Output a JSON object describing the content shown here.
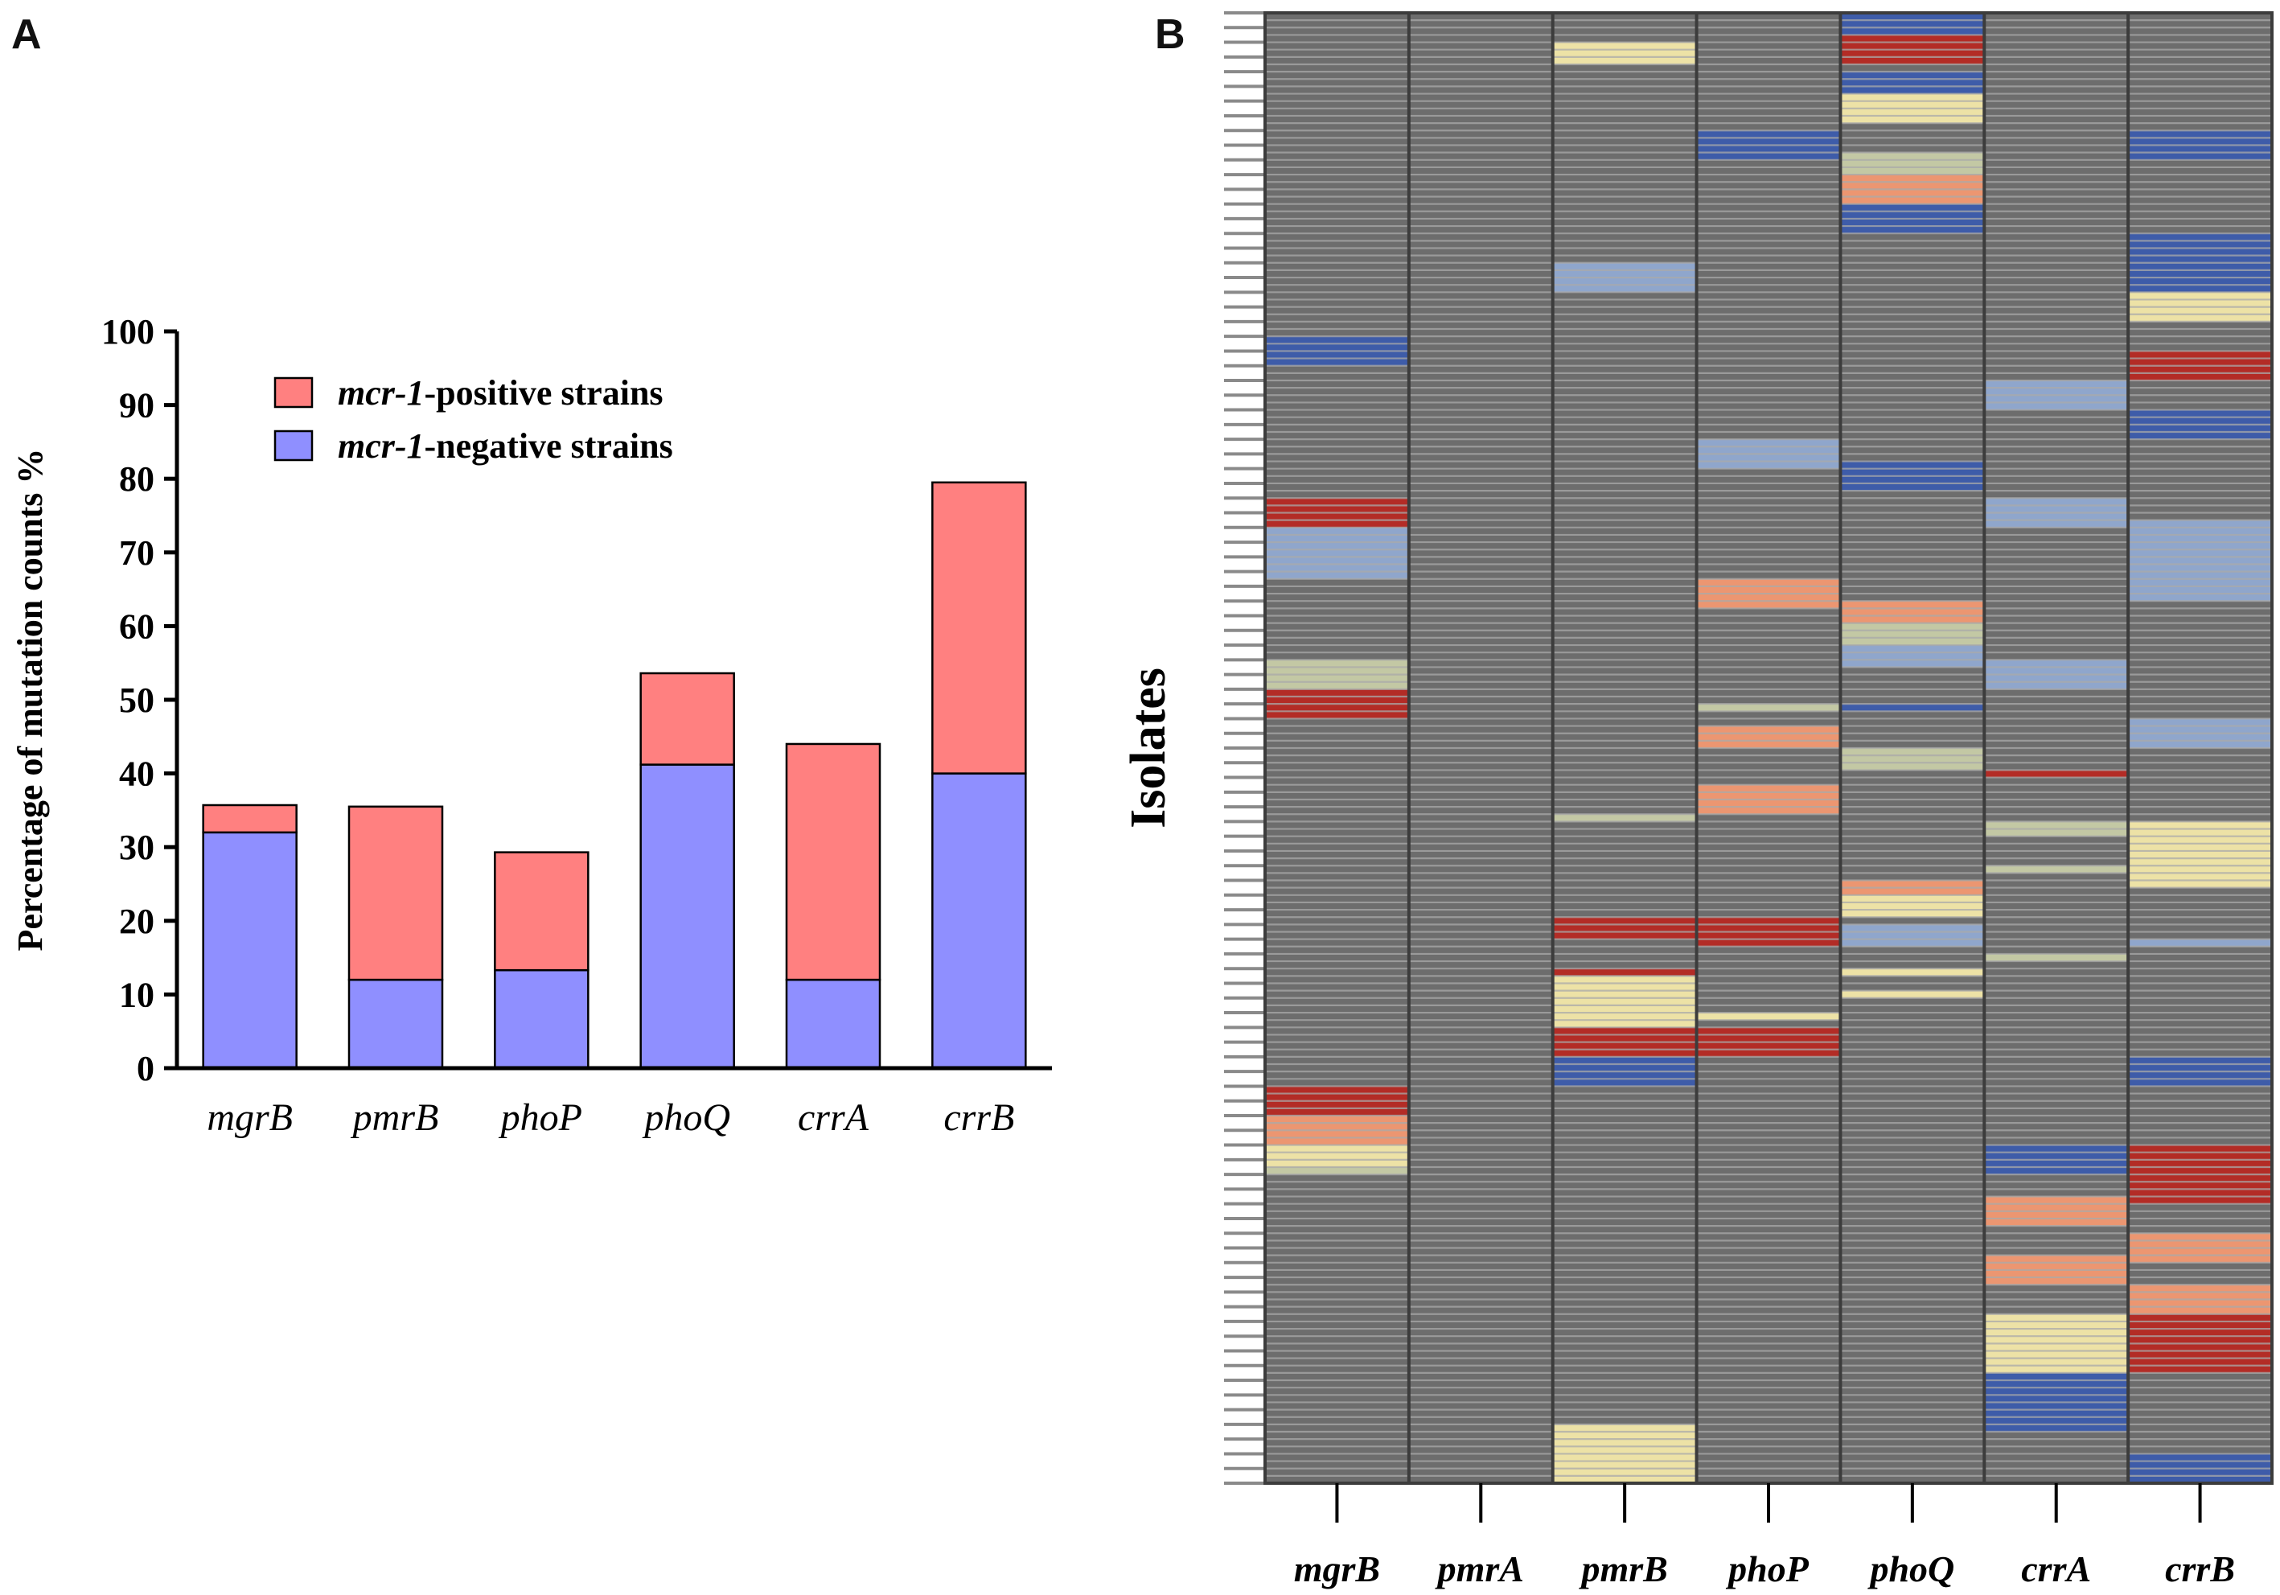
{
  "panels": {
    "a_label": "A",
    "b_label": "B"
  },
  "colors": {
    "positive": "#ff8080",
    "negative": "#8f8fff",
    "heatmap_bg": "#6d6d6d",
    "heatmap_line": "#a9a9a9",
    "red": "#b32c26",
    "orange": "#ec9671",
    "cream": "#ede2a6",
    "lightgreen": "#c3c8a4",
    "lightblue": "#8fa6cc",
    "blue": "#3e5ca9"
  },
  "chart_data": [
    {
      "type": "bar",
      "stacked": true,
      "title": "",
      "xlabel": "",
      "ylabel": "Percentage of mutation counts %",
      "ylim": [
        0,
        100
      ],
      "yticks": [
        0,
        10,
        20,
        30,
        40,
        50,
        60,
        70,
        80,
        90,
        100
      ],
      "categories": [
        "mgrB",
        "pmrB",
        "phoP",
        "phoQ",
        "crrA",
        "crrB"
      ],
      "legend_position": "top-left",
      "series": [
        {
          "name": "mcr-1-negative strains",
          "name_italic": "mcr-1",
          "name_rest": "-negative strains",
          "color": "negative",
          "values": [
            32,
            12,
            13.3,
            41.2,
            12,
            40
          ]
        },
        {
          "name": "mcr-1-positive strains",
          "name_italic": "mcr-1",
          "name_rest": "-positive strains",
          "color": "positive",
          "values": [
            3.7,
            23.5,
            16,
            12.4,
            32,
            39.5
          ]
        }
      ]
    },
    {
      "type": "heatmap",
      "ylabel": "Isolates",
      "columns": [
        "mgrB",
        "pmrA",
        "pmrB",
        "phoP",
        "phoQ",
        "crrA",
        "crrB"
      ],
      "rows": 100,
      "row_scale": [
        0,
        100
      ],
      "default_color": "heatmap_bg",
      "segments": {
        "mgrB": [
          [
            22,
            24,
            "blue"
          ],
          [
            33,
            35,
            "red"
          ],
          [
            35,
            38.5,
            "lightblue"
          ],
          [
            44,
            46,
            "lightgreen"
          ],
          [
            46,
            48,
            "red"
          ],
          [
            73,
            75,
            "red"
          ],
          [
            75,
            77,
            "orange"
          ],
          [
            77,
            78.5,
            "cream"
          ],
          [
            78.5,
            79,
            "lightgreen"
          ]
        ],
        "pmrA": [],
        "pmrB": [
          [
            2,
            3.5,
            "cream"
          ],
          [
            17,
            19,
            "lightblue"
          ],
          [
            54.5,
            55,
            "lightgreen"
          ],
          [
            61.5,
            63,
            "red"
          ],
          [
            65,
            65.5,
            "red"
          ],
          [
            65.5,
            69,
            "cream"
          ],
          [
            69,
            71,
            "red"
          ],
          [
            71,
            73,
            "blue"
          ],
          [
            96,
            100,
            "cream"
          ]
        ],
        "phoP": [
          [
            8,
            10,
            "blue"
          ],
          [
            29,
            31,
            "lightblue"
          ],
          [
            38.5,
            40.5,
            "orange"
          ],
          [
            47,
            47.5,
            "lightgreen"
          ],
          [
            48.5,
            50,
            "orange"
          ],
          [
            52.5,
            54.5,
            "orange"
          ],
          [
            61.5,
            63.5,
            "red"
          ],
          [
            68,
            68.5,
            "cream"
          ],
          [
            69,
            71,
            "red"
          ]
        ],
        "phoQ": [
          [
            0,
            1.5,
            "blue"
          ],
          [
            1.5,
            3.5,
            "red"
          ],
          [
            4,
            5.5,
            "blue"
          ],
          [
            5.5,
            7.5,
            "cream"
          ],
          [
            9.5,
            11,
            "lightgreen"
          ],
          [
            11,
            13,
            "orange"
          ],
          [
            13,
            15,
            "blue"
          ],
          [
            30.5,
            32.5,
            "blue"
          ],
          [
            40,
            41.5,
            "orange"
          ],
          [
            41.5,
            43,
            "lightgreen"
          ],
          [
            43,
            44.5,
            "lightblue"
          ],
          [
            47,
            47.5,
            "blue"
          ],
          [
            50,
            51.5,
            "lightgreen"
          ],
          [
            59,
            60,
            "orange"
          ],
          [
            60,
            61.5,
            "cream"
          ],
          [
            62,
            63.5,
            "lightblue"
          ],
          [
            65,
            65.5,
            "cream"
          ],
          [
            66.5,
            67,
            "cream"
          ]
        ],
        "crrA": [
          [
            25,
            27,
            "lightblue"
          ],
          [
            33,
            35,
            "lightblue"
          ],
          [
            44,
            46,
            "lightblue"
          ],
          [
            51.5,
            52,
            "red"
          ],
          [
            55,
            56,
            "lightgreen"
          ],
          [
            58,
            58.5,
            "lightgreen"
          ],
          [
            64,
            64.5,
            "lightgreen"
          ],
          [
            77,
            79,
            "blue"
          ],
          [
            80.5,
            82.5,
            "orange"
          ],
          [
            84.5,
            86.5,
            "orange"
          ],
          [
            88.5,
            92.5,
            "cream"
          ],
          [
            92.5,
            96.5,
            "blue"
          ]
        ],
        "crrB": [
          [
            8,
            10,
            "blue"
          ],
          [
            15,
            19,
            "blue"
          ],
          [
            19,
            21,
            "cream"
          ],
          [
            23,
            25,
            "red"
          ],
          [
            27,
            29,
            "blue"
          ],
          [
            34.5,
            40,
            "lightblue"
          ],
          [
            48,
            50,
            "lightblue"
          ],
          [
            55,
            59.5,
            "cream"
          ],
          [
            63,
            63.5,
            "lightblue"
          ],
          [
            71,
            73,
            "blue"
          ],
          [
            77,
            81,
            "red"
          ],
          [
            83,
            85,
            "orange"
          ],
          [
            86.5,
            88.5,
            "orange"
          ],
          [
            88.5,
            92.5,
            "red"
          ],
          [
            98,
            100,
            "blue"
          ]
        ]
      }
    }
  ]
}
